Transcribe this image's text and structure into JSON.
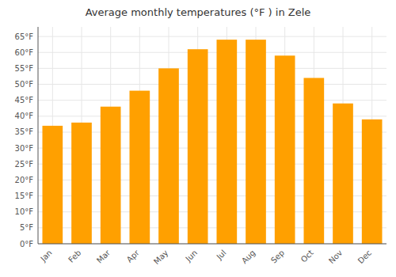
{
  "chart_data": {
    "type": "bar",
    "title": "Average monthly temperatures (°F ) in Zele",
    "categories": [
      "Jan",
      "Feb",
      "Mar",
      "Apr",
      "May",
      "Jun",
      "Jul",
      "Aug",
      "Sep",
      "Oct",
      "Nov",
      "Dec"
    ],
    "values": [
      37,
      38,
      43,
      48,
      55,
      61,
      64,
      64,
      59,
      52,
      44,
      39
    ],
    "color": "#FFA000",
    "ylim": [
      0,
      68
    ],
    "yticks": [
      {
        "value": 0,
        "label": "0°F"
      },
      {
        "value": 5,
        "label": "5°F"
      },
      {
        "value": 10,
        "label": "10°F"
      },
      {
        "value": 15,
        "label": "15°F"
      },
      {
        "value": 20,
        "label": "20°F"
      },
      {
        "value": 25,
        "label": "25°F"
      },
      {
        "value": 30,
        "label": "30°F"
      },
      {
        "value": 35,
        "label": "35°F"
      },
      {
        "value": 40,
        "label": "40°F"
      },
      {
        "value": 45,
        "label": "45°F"
      },
      {
        "value": 50,
        "label": "50°F"
      },
      {
        "value": 55,
        "label": "55°F"
      },
      {
        "value": 60,
        "label": "60°F"
      },
      {
        "value": 65,
        "label": "65°F"
      }
    ],
    "grid": true
  }
}
